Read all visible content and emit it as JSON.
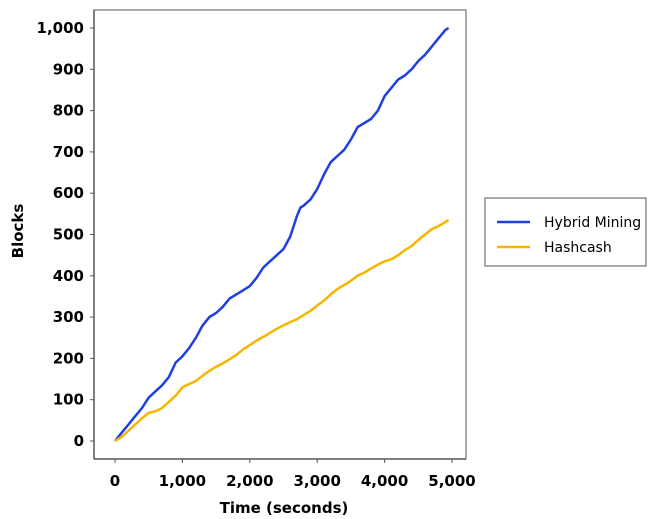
{
  "chart_data": {
    "type": "line",
    "xlabel": "Time (seconds)",
    "ylabel": "Blocks",
    "xlim": [
      -300,
      5200
    ],
    "ylim": [
      -50,
      1050
    ],
    "xticks": [
      0,
      1000,
      2000,
      3000,
      4000,
      5000
    ],
    "xtick_labels": [
      "0",
      "1,000",
      "2,000",
      "3,000",
      "4,000",
      "5,000"
    ],
    "yticks": [
      0,
      100,
      200,
      300,
      400,
      500,
      600,
      700,
      800,
      900,
      1000
    ],
    "ytick_labels": [
      "0",
      "100",
      "200",
      "300",
      "400",
      "500",
      "600",
      "700",
      "800",
      "900",
      "1,000"
    ],
    "grid": false,
    "legend_position": "right",
    "series": [
      {
        "name": "Hybrid Mining",
        "color": "#1f3fe0",
        "x": [
          0,
          100,
          200,
          300,
          400,
          500,
          600,
          700,
          800,
          900,
          1000,
          1100,
          1200,
          1300,
          1400,
          1500,
          1600,
          1700,
          1800,
          1900,
          2000,
          2100,
          2200,
          2300,
          2400,
          2500,
          2600,
          2700,
          2750,
          2800,
          2900,
          3000,
          3100,
          3200,
          3300,
          3400,
          3500,
          3600,
          3700,
          3800,
          3900,
          4000,
          4100,
          4200,
          4300,
          4400,
          4500,
          4600,
          4700,
          4800,
          4900,
          4950
        ],
        "y": [
          0,
          20,
          40,
          60,
          80,
          105,
          120,
          135,
          155,
          190,
          205,
          225,
          250,
          280,
          300,
          310,
          325,
          345,
          355,
          365,
          375,
          395,
          420,
          435,
          450,
          465,
          495,
          545,
          565,
          570,
          585,
          610,
          645,
          675,
          690,
          705,
          730,
          760,
          770,
          780,
          800,
          835,
          855,
          875,
          885,
          900,
          920,
          935,
          955,
          975,
          995,
          1000
        ]
      },
      {
        "name": "Hashcash",
        "color": "#f7b500",
        "x": [
          0,
          100,
          200,
          300,
          400,
          500,
          600,
          700,
          800,
          900,
          1000,
          1100,
          1200,
          1300,
          1400,
          1500,
          1600,
          1700,
          1800,
          1900,
          2000,
          2100,
          2200,
          2300,
          2400,
          2500,
          2600,
          2700,
          2800,
          2900,
          3000,
          3100,
          3200,
          3300,
          3400,
          3500,
          3600,
          3700,
          3800,
          3900,
          4000,
          4100,
          4200,
          4300,
          4400,
          4500,
          4600,
          4700,
          4800,
          4900,
          4950
        ],
        "y": [
          0,
          10,
          25,
          40,
          55,
          68,
          72,
          80,
          95,
          110,
          130,
          138,
          145,
          158,
          170,
          180,
          188,
          198,
          208,
          222,
          232,
          243,
          252,
          262,
          272,
          280,
          288,
          295,
          305,
          315,
          328,
          340,
          355,
          368,
          378,
          388,
          400,
          408,
          418,
          427,
          435,
          440,
          450,
          462,
          472,
          487,
          500,
          513,
          520,
          530,
          535
        ]
      }
    ]
  }
}
